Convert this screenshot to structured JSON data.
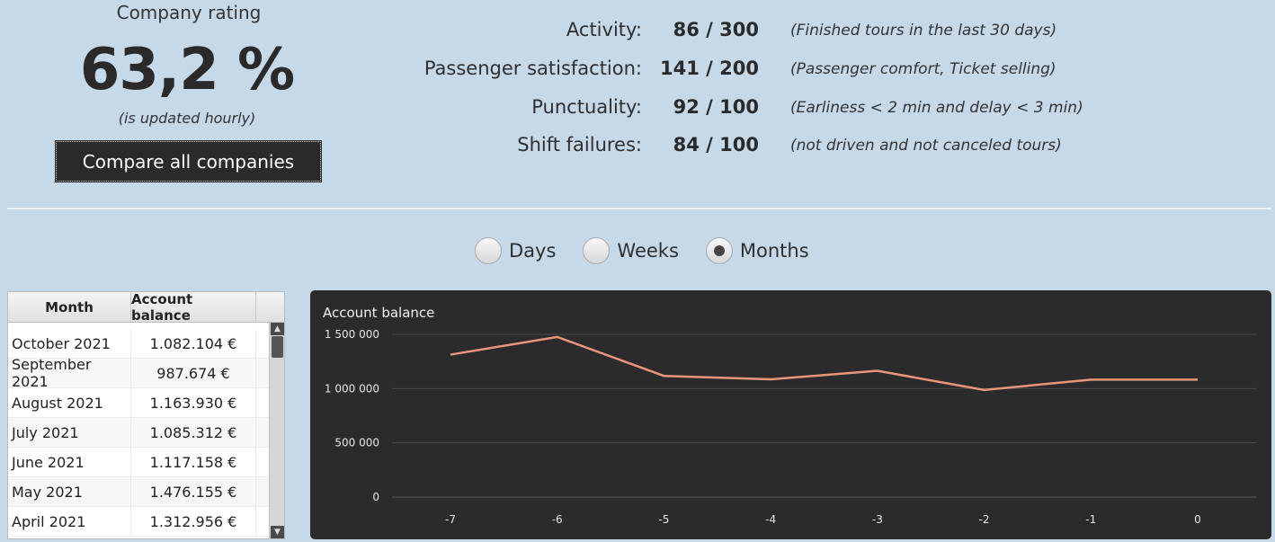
{
  "rating": {
    "title": "Company rating",
    "value": "63,2 %",
    "note": "(is updated hourly)",
    "compare_button": "Compare all companies"
  },
  "metrics": [
    {
      "label": "Activity:",
      "value": "86 / 300",
      "description": "(Finished tours in the last 30 days)"
    },
    {
      "label": "Passenger satisfaction:",
      "value": "141 / 200",
      "description": "(Passenger comfort, Ticket selling)"
    },
    {
      "label": "Punctuality:",
      "value": "92 / 100",
      "description": "(Earliness < 2 min and delay < 3 min)"
    },
    {
      "label": "Shift failures:",
      "value": "84 / 100",
      "description": "(not driven and not canceled tours)"
    }
  ],
  "period_options": [
    {
      "label": "Days",
      "selected": false
    },
    {
      "label": "Weeks",
      "selected": false
    },
    {
      "label": "Months",
      "selected": true
    }
  ],
  "table": {
    "columns": [
      "Month",
      "Account balance"
    ],
    "rows": [
      [
        "October 2021",
        "1.082.104 €"
      ],
      [
        "September 2021",
        "987.674 €"
      ],
      [
        "August 2021",
        "1.163.930 €"
      ],
      [
        "July 2021",
        "1.085.312 €"
      ],
      [
        "June 2021",
        "1.117.158 €"
      ],
      [
        "May 2021",
        "1.476.155 €"
      ],
      [
        "April 2021",
        "1.312.956 €"
      ]
    ]
  },
  "chart_data": {
    "type": "line",
    "title": "Account balance",
    "x": [
      -7,
      -6,
      -5,
      -4,
      -3,
      -2,
      -1,
      0
    ],
    "series": [
      {
        "values": [
          1312956,
          1476155,
          1117158,
          1085312,
          1163930,
          987674,
          1082104,
          1082104
        ],
        "color": "#e8967a"
      }
    ],
    "y_ticks": [
      "0",
      "500 000",
      "1 000 000",
      "1 500 000"
    ],
    "ylim": [
      0,
      1500000
    ],
    "grid": true
  },
  "colors": {
    "background": "#c5d9e8",
    "chart_background": "#2b2b2b",
    "line": "#e8967a",
    "button": "#2a2a2a"
  }
}
